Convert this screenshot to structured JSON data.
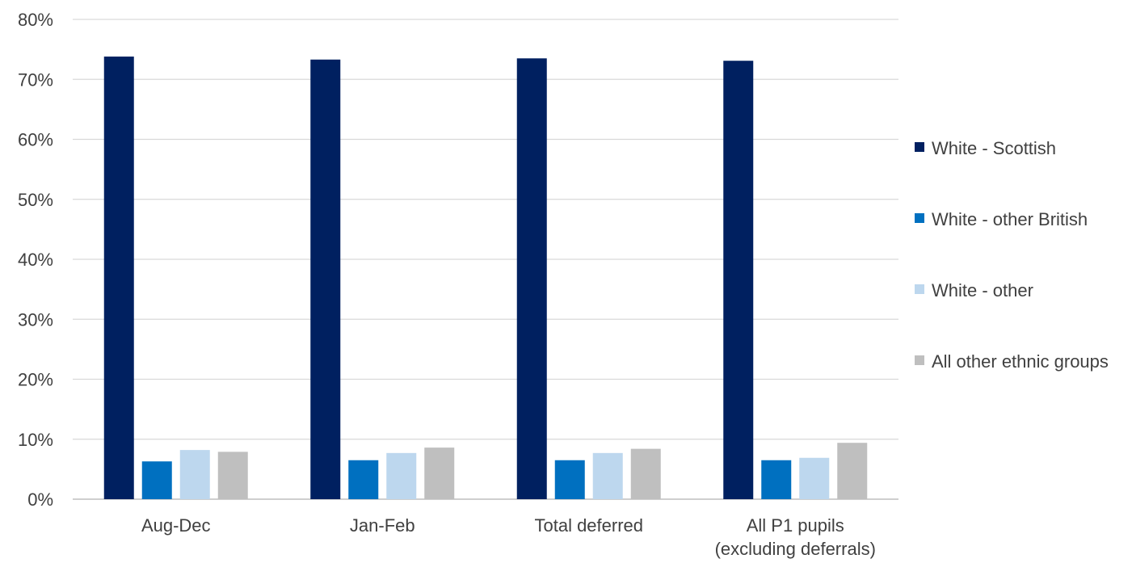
{
  "chart_data": {
    "type": "bar",
    "title": "",
    "xlabel": "",
    "ylabel": "",
    "ylim": [
      0,
      80
    ],
    "yticks": [
      "0%",
      "10%",
      "20%",
      "30%",
      "40%",
      "50%",
      "60%",
      "70%",
      "80%"
    ],
    "ytick_values": [
      0,
      10,
      20,
      30,
      40,
      50,
      60,
      70,
      80
    ],
    "grid": true,
    "legend_position": "right",
    "categories": [
      [
        "Aug-Dec"
      ],
      [
        "Jan-Feb"
      ],
      [
        "Total deferred"
      ],
      [
        "All P1 pupils",
        "(excluding deferrals)"
      ]
    ],
    "series": [
      {
        "name": "White - Scottish",
        "color": "#002060",
        "values": [
          73.8,
          73.3,
          73.5,
          73.1
        ]
      },
      {
        "name": "White - other British",
        "color": "#0070C0",
        "values": [
          6.3,
          6.5,
          6.5,
          6.5
        ]
      },
      {
        "name": "White - other",
        "color": "#BDD7EE",
        "values": [
          8.2,
          7.7,
          7.7,
          6.9
        ]
      },
      {
        "name": "All other ethnic groups",
        "color": "#BFBFBF",
        "values": [
          7.9,
          8.6,
          8.4,
          9.4
        ]
      }
    ]
  }
}
